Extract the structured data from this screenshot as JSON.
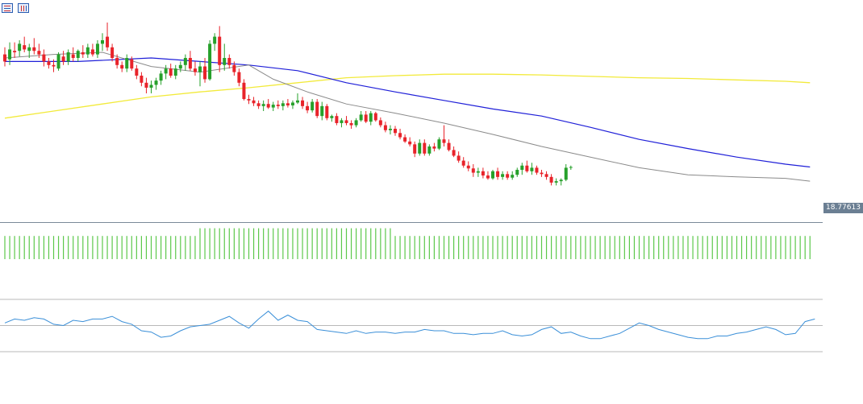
{
  "toolbar": {
    "icons": [
      "list-icon",
      "chart-icon"
    ]
  },
  "colors": {
    "bull": "#26a02a",
    "bear": "#e8232a",
    "wick": "#555555",
    "ma_fast": "#8a8a8a",
    "ma_mid": "#1f1fd8",
    "ma_slow": "#f2ea3a",
    "volume": "#5cc84a",
    "rsi": "#3a8fd8",
    "grid": "#b8b8b8",
    "price_line": "#7a8a99"
  },
  "chart_data": [
    {
      "type": "candlestick",
      "title": "",
      "last_price_label": "18.77613",
      "last_price": 18.776,
      "ylim": [
        18.6,
        21.6
      ],
      "ohlc": [
        [
          21.15,
          21.25,
          20.98,
          21.05
        ],
        [
          21.08,
          21.32,
          21.0,
          21.22
        ],
        [
          21.2,
          21.32,
          21.1,
          21.18
        ],
        [
          21.2,
          21.35,
          21.12,
          21.3
        ],
        [
          21.28,
          21.4,
          21.18,
          21.22
        ],
        [
          21.2,
          21.3,
          21.1,
          21.25
        ],
        [
          21.25,
          21.38,
          21.15,
          21.2
        ],
        [
          21.2,
          21.3,
          21.1,
          21.15
        ],
        [
          21.15,
          21.22,
          20.98,
          21.05
        ],
        [
          21.05,
          21.1,
          20.95,
          21.0
        ],
        [
          21.0,
          21.08,
          20.9,
          20.98
        ],
        [
          20.95,
          21.18,
          20.92,
          21.15
        ],
        [
          21.12,
          21.2,
          21.0,
          21.05
        ],
        [
          21.05,
          21.22,
          21.0,
          21.18
        ],
        [
          21.15,
          21.25,
          21.05,
          21.1
        ],
        [
          21.1,
          21.22,
          21.05,
          21.2
        ],
        [
          21.18,
          21.28,
          21.1,
          21.15
        ],
        [
          21.15,
          21.3,
          21.1,
          21.25
        ],
        [
          21.22,
          21.3,
          21.12,
          21.15
        ],
        [
          21.15,
          21.35,
          21.1,
          21.3
        ],
        [
          21.3,
          21.45,
          21.2,
          21.35
        ],
        [
          21.4,
          21.6,
          21.2,
          21.25
        ],
        [
          21.25,
          21.3,
          21.05,
          21.1
        ],
        [
          21.1,
          21.15,
          20.95,
          21.0
        ],
        [
          21.0,
          21.05,
          20.9,
          20.95
        ],
        [
          20.95,
          21.15,
          20.9,
          21.1
        ],
        [
          21.08,
          21.12,
          20.92,
          20.95
        ],
        [
          20.95,
          21.0,
          20.8,
          20.85
        ],
        [
          20.85,
          20.9,
          20.7,
          20.75
        ],
        [
          20.75,
          20.82,
          20.6,
          20.68
        ],
        [
          20.68,
          20.78,
          20.6,
          20.72
        ],
        [
          20.72,
          20.82,
          20.65,
          20.78
        ],
        [
          20.78,
          20.92,
          20.72,
          20.88
        ],
        [
          20.88,
          21.0,
          20.8,
          20.95
        ],
        [
          20.95,
          21.02,
          20.82,
          20.85
        ],
        [
          20.85,
          21.0,
          20.8,
          20.95
        ],
        [
          20.95,
          21.05,
          20.9,
          21.0
        ],
        [
          21.0,
          21.15,
          20.92,
          21.1
        ],
        [
          21.1,
          21.2,
          20.92,
          20.95
        ],
        [
          20.95,
          21.05,
          20.85,
          20.9
        ],
        [
          20.9,
          21.05,
          20.7,
          20.98
        ],
        [
          20.98,
          21.1,
          20.75,
          20.8
        ],
        [
          20.8,
          21.35,
          20.78,
          21.3
        ],
        [
          21.3,
          21.45,
          21.2,
          21.4
        ],
        [
          21.4,
          21.55,
          20.9,
          21.0
        ],
        [
          21.0,
          21.3,
          20.92,
          21.1
        ],
        [
          21.1,
          21.15,
          20.95,
          21.0
        ],
        [
          21.0,
          21.05,
          20.85,
          20.9
        ],
        [
          20.9,
          20.95,
          20.7,
          20.75
        ],
        [
          20.75,
          20.8,
          20.5,
          20.52
        ],
        [
          20.52,
          20.58,
          20.45,
          20.5
        ],
        [
          20.5,
          20.55,
          20.42,
          20.46
        ],
        [
          20.46,
          20.5,
          20.38,
          20.42
        ],
        [
          20.42,
          20.5,
          20.35,
          20.45
        ],
        [
          20.45,
          20.52,
          20.38,
          20.4
        ],
        [
          20.4,
          20.48,
          20.35,
          20.44
        ],
        [
          20.44,
          20.5,
          20.38,
          20.42
        ],
        [
          20.42,
          20.5,
          20.36,
          20.46
        ],
        [
          20.46,
          20.52,
          20.4,
          20.43
        ],
        [
          20.43,
          20.5,
          20.38,
          20.47
        ],
        [
          20.47,
          20.6,
          20.45,
          20.5
        ],
        [
          20.5,
          20.55,
          20.38,
          20.42
        ],
        [
          20.42,
          20.48,
          20.32,
          20.36
        ],
        [
          20.36,
          20.52,
          20.33,
          20.48
        ],
        [
          20.48,
          20.52,
          20.25,
          20.28
        ],
        [
          20.28,
          20.48,
          20.22,
          20.42
        ],
        [
          20.42,
          20.45,
          20.22,
          20.25
        ],
        [
          20.25,
          20.3,
          20.2,
          20.28
        ],
        [
          20.28,
          20.32,
          20.15,
          20.18
        ],
        [
          20.18,
          20.25,
          20.12,
          20.22
        ],
        [
          20.22,
          20.28,
          20.15,
          20.18
        ],
        [
          20.18,
          20.22,
          20.1,
          20.15
        ],
        [
          20.15,
          20.25,
          20.12,
          20.22
        ],
        [
          20.22,
          20.35,
          20.2,
          20.3
        ],
        [
          20.3,
          20.35,
          20.18,
          20.2
        ],
        [
          20.2,
          20.35,
          20.15,
          20.32
        ],
        [
          20.32,
          20.34,
          20.2,
          20.22
        ],
        [
          20.22,
          20.26,
          20.12,
          20.15
        ],
        [
          20.15,
          20.2,
          20.05,
          20.08
        ],
        [
          20.08,
          20.15,
          20.02,
          20.1
        ],
        [
          20.1,
          20.14,
          20.0,
          20.04
        ],
        [
          20.04,
          20.1,
          19.95,
          19.98
        ],
        [
          19.98,
          20.02,
          19.9,
          19.92
        ],
        [
          19.92,
          19.98,
          19.85,
          19.88
        ],
        [
          19.88,
          19.92,
          19.7,
          19.75
        ],
        [
          19.75,
          19.95,
          19.72,
          19.9
        ],
        [
          19.9,
          19.95,
          19.72,
          19.75
        ],
        [
          19.75,
          19.88,
          19.72,
          19.85
        ],
        [
          19.85,
          19.9,
          19.78,
          19.82
        ],
        [
          19.82,
          19.98,
          19.8,
          19.95
        ],
        [
          19.95,
          20.15,
          19.85,
          19.9
        ],
        [
          19.9,
          19.95,
          19.78,
          19.8
        ],
        [
          19.8,
          19.85,
          19.7,
          19.72
        ],
        [
          19.72,
          19.78,
          19.62,
          19.65
        ],
        [
          19.65,
          19.7,
          19.55,
          19.58
        ],
        [
          19.58,
          19.64,
          19.5,
          19.54
        ],
        [
          19.54,
          19.6,
          19.42,
          19.48
        ],
        [
          19.48,
          19.55,
          19.42,
          19.5
        ],
        [
          19.5,
          19.55,
          19.4,
          19.44
        ],
        [
          19.44,
          19.5,
          19.38,
          19.4
        ],
        [
          19.4,
          19.52,
          19.38,
          19.5
        ],
        [
          19.5,
          19.55,
          19.38,
          19.42
        ],
        [
          19.42,
          19.5,
          19.38,
          19.46
        ],
        [
          19.46,
          19.5,
          19.38,
          19.41
        ],
        [
          19.41,
          19.5,
          19.38,
          19.45
        ],
        [
          19.45,
          19.55,
          19.42,
          19.52
        ],
        [
          19.52,
          19.62,
          19.45,
          19.58
        ],
        [
          19.58,
          19.65,
          19.48,
          19.5
        ],
        [
          19.5,
          19.62,
          19.45,
          19.55
        ],
        [
          19.55,
          19.58,
          19.45,
          19.48
        ],
        [
          19.48,
          19.52,
          19.42,
          19.46
        ],
        [
          19.46,
          19.5,
          19.38,
          19.42
        ],
        [
          19.42,
          19.46,
          19.3,
          19.34
        ],
        [
          19.34,
          19.4,
          19.3,
          19.36
        ],
        [
          19.36,
          19.4,
          19.3,
          19.38
        ],
        [
          19.38,
          19.6,
          19.36,
          19.55
        ],
        [
          19.55,
          19.58,
          19.52,
          19.56
        ]
      ],
      "ma_fast": [
        [
          0,
          21.1
        ],
        [
          10,
          21.15
        ],
        [
          20,
          21.18
        ],
        [
          30,
          20.98
        ],
        [
          40,
          20.9
        ],
        [
          50,
          21.0
        ],
        [
          55,
          20.8
        ],
        [
          62,
          20.62
        ],
        [
          70,
          20.45
        ],
        [
          80,
          20.32
        ],
        [
          90,
          20.18
        ],
        [
          100,
          20.02
        ],
        [
          110,
          19.85
        ],
        [
          120,
          19.7
        ],
        [
          130,
          19.55
        ],
        [
          140,
          19.45
        ],
        [
          150,
          19.42
        ],
        [
          160,
          19.4
        ],
        [
          165,
          19.36
        ]
      ],
      "ma_mid": [
        [
          0,
          21.05
        ],
        [
          15,
          21.05
        ],
        [
          30,
          21.1
        ],
        [
          40,
          21.05
        ],
        [
          50,
          21.0
        ],
        [
          60,
          20.92
        ],
        [
          70,
          20.75
        ],
        [
          80,
          20.62
        ],
        [
          90,
          20.5
        ],
        [
          100,
          20.38
        ],
        [
          110,
          20.28
        ],
        [
          120,
          20.12
        ],
        [
          130,
          19.95
        ],
        [
          140,
          19.82
        ],
        [
          150,
          19.7
        ],
        [
          160,
          19.6
        ],
        [
          165,
          19.56
        ]
      ],
      "ma_slow": [
        [
          0,
          20.25
        ],
        [
          10,
          20.35
        ],
        [
          20,
          20.45
        ],
        [
          30,
          20.55
        ],
        [
          40,
          20.62
        ],
        [
          50,
          20.68
        ],
        [
          60,
          20.75
        ],
        [
          70,
          20.82
        ],
        [
          80,
          20.85
        ],
        [
          90,
          20.87
        ],
        [
          100,
          20.87
        ],
        [
          110,
          20.86
        ],
        [
          120,
          20.84
        ],
        [
          130,
          20.82
        ],
        [
          140,
          20.81
        ],
        [
          150,
          20.79
        ],
        [
          160,
          20.77
        ],
        [
          165,
          20.75
        ]
      ]
    },
    {
      "type": "bar",
      "title": "",
      "values": [
        3,
        3,
        3,
        3,
        3,
        3,
        3,
        3,
        3,
        3,
        3,
        3,
        3,
        3,
        3,
        3,
        3,
        3,
        3,
        3,
        3,
        3,
        3,
        3,
        3,
        3,
        3,
        3,
        3,
        3,
        3,
        3,
        3,
        3,
        3,
        3,
        3,
        3,
        3,
        3,
        4,
        4,
        4,
        4,
        4,
        4,
        4,
        4,
        4,
        4,
        4,
        4,
        4,
        4,
        4,
        4,
        4,
        4,
        4,
        4,
        4,
        4,
        4,
        4,
        4,
        4,
        4,
        4,
        4,
        4,
        4,
        4,
        4,
        4,
        4,
        4,
        4,
        4,
        4,
        4,
        3,
        3,
        3,
        3,
        3,
        3,
        3,
        3,
        3,
        3,
        3,
        3,
        3,
        3,
        3,
        3,
        3,
        3,
        3,
        3,
        3,
        3,
        3,
        3,
        3,
        3,
        3,
        3,
        3,
        3,
        3,
        3,
        3,
        3,
        3,
        3,
        3,
        3,
        3,
        3,
        3,
        3,
        3,
        3,
        3,
        3,
        3,
        3,
        3,
        3,
        3,
        3,
        3,
        3,
        3,
        3,
        3,
        3,
        3,
        3,
        3,
        3,
        3,
        3,
        3,
        3,
        3,
        3,
        3,
        3,
        3,
        3,
        3,
        3,
        3,
        3,
        3,
        3,
        3,
        3,
        3,
        3,
        3,
        3,
        3,
        3
      ],
      "ylim": [
        0,
        6
      ]
    },
    {
      "type": "line",
      "title": "",
      "ylim": [
        30,
        70
      ],
      "levels": [
        30,
        50,
        70
      ],
      "x": [
        0,
        2,
        4,
        6,
        8,
        10,
        12,
        14,
        16,
        18,
        20,
        22,
        24,
        26,
        28,
        30,
        32,
        34,
        36,
        38,
        40,
        42,
        44,
        46,
        48,
        50,
        52,
        54,
        56,
        58,
        60,
        62,
        64,
        66,
        68,
        70,
        72,
        74,
        76,
        78,
        80,
        82,
        84,
        86,
        88,
        90,
        92,
        94,
        96,
        98,
        100,
        102,
        104,
        106,
        108,
        110,
        112,
        114,
        116,
        118,
        120,
        122,
        124,
        126,
        128,
        130,
        132,
        134,
        136,
        138,
        140,
        142,
        144,
        146,
        148,
        150,
        152,
        154,
        156,
        158,
        160,
        162,
        164,
        166
      ],
      "values": [
        52,
        55,
        54,
        56,
        55,
        51,
        50,
        54,
        53,
        55,
        55,
        57,
        53,
        51,
        46,
        45,
        41,
        42,
        46,
        49,
        50,
        51,
        54,
        57,
        52,
        48,
        55,
        61,
        54,
        58,
        54,
        53,
        47,
        46,
        45,
        44,
        46,
        44,
        45,
        45,
        44,
        45,
        45,
        47,
        46,
        46,
        44,
        44,
        43,
        44,
        44,
        46,
        43,
        42,
        43,
        47,
        49,
        44,
        45,
        42,
        40,
        40,
        42,
        44,
        48,
        52,
        50,
        47,
        45,
        43,
        41,
        40,
        40,
        42,
        42,
        44,
        45,
        47,
        49,
        47,
        43,
        44,
        53,
        55
      ]
    }
  ]
}
